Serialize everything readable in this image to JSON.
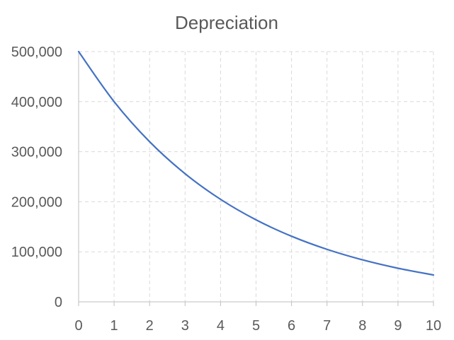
{
  "chart_data": {
    "type": "line",
    "title": "Depreciation",
    "xlabel": "",
    "ylabel": "",
    "x": [
      0,
      1,
      2,
      3,
      4,
      5,
      6,
      7,
      8,
      9,
      10
    ],
    "x_ticks": [
      "0",
      "1",
      "2",
      "3",
      "4",
      "5",
      "6",
      "7",
      "8",
      "9",
      "10"
    ],
    "y_ticks": [
      "0",
      "100,000",
      "200,000",
      "300,000",
      "400,000",
      "500,000"
    ],
    "y_tick_values": [
      0,
      100000,
      200000,
      300000,
      400000,
      500000
    ],
    "xlim": [
      0,
      10
    ],
    "ylim": [
      0,
      500000
    ],
    "grid": true,
    "legend": "none",
    "series": [
      {
        "values": [
          500000,
          400000,
          320000,
          256000,
          204800,
          163840,
          131072,
          104858,
          83886,
          67109,
          53687
        ],
        "color": "#4472c4"
      }
    ]
  }
}
